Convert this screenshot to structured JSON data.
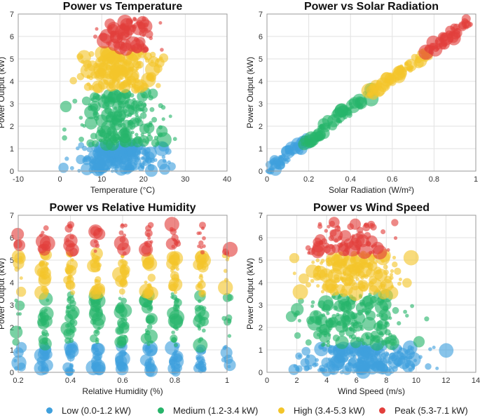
{
  "colors": {
    "low": "#3fa0dd",
    "medium": "#27b46a",
    "high": "#f3c52a",
    "peak": "#e23f3c"
  },
  "legend": [
    {
      "key": "low",
      "label": "Low (0.0-1.2 kW)"
    },
    {
      "key": "medium",
      "label": "Medium (1.2-3.4 kW)"
    },
    {
      "key": "high",
      "label": "High (3.4-5.3 kW)"
    },
    {
      "key": "peak",
      "label": "Peak (5.3-7.1 kW)"
    }
  ],
  "chart_data": [
    {
      "type": "scatter",
      "id": "temperature",
      "title": "Power vs Temperature",
      "xlabel": "Temperature (°C)",
      "ylabel": "Power Output (kW)",
      "xlim": [
        -10,
        40
      ],
      "ylim": [
        0,
        7
      ],
      "xticks": [
        -10,
        0,
        10,
        20,
        30,
        40
      ],
      "yticks": [
        0,
        1,
        2,
        3,
        4,
        5,
        6,
        7
      ],
      "grid": true,
      "clusters": [
        {
          "category": "low",
          "x_range": [
            -3,
            30
          ],
          "y_range": [
            0,
            1.2
          ],
          "n": 200
        },
        {
          "category": "medium",
          "x_range": [
            -1,
            30
          ],
          "y_range": [
            1.2,
            3.5
          ],
          "n": 180
        },
        {
          "category": "high",
          "x_range": [
            -1,
            29
          ],
          "y_range": [
            3.6,
            5.3
          ],
          "n": 160
        },
        {
          "category": "peak",
          "x_range": [
            6,
            26
          ],
          "y_range": [
            5.4,
            6.8
          ],
          "n": 80
        }
      ]
    },
    {
      "type": "scatter",
      "id": "solar",
      "title": "Power vs Solar Radiation",
      "xlabel": "Solar Radiation (W/m²)",
      "ylabel": "Power Output (kW)",
      "xlim": [
        0,
        1
      ],
      "ylim": [
        0,
        7
      ],
      "xticks": [
        0,
        0.2,
        0.4,
        0.6,
        0.8,
        1
      ],
      "yticks": [
        0,
        1,
        2,
        3,
        4,
        5,
        6,
        7
      ],
      "grid": true,
      "trend": {
        "slope": 6.9,
        "intercept": 0.0
      },
      "clusters": [
        {
          "category": "low",
          "x_range": [
            0.0,
            0.2
          ],
          "y_range": [
            0,
            1.2
          ],
          "n": 70
        },
        {
          "category": "medium",
          "x_range": [
            0.17,
            0.5
          ],
          "y_range": [
            1.2,
            3.4
          ],
          "n": 70
        },
        {
          "category": "high",
          "x_range": [
            0.48,
            0.78
          ],
          "y_range": [
            3.4,
            5.3
          ],
          "n": 70
        },
        {
          "category": "peak",
          "x_range": [
            0.76,
            0.98
          ],
          "y_range": [
            5.3,
            6.7
          ],
          "n": 55
        }
      ]
    },
    {
      "type": "scatter",
      "id": "humidity",
      "title": "Power vs Relative Humidity",
      "xlabel": "Relative Humidity (%)",
      "ylabel": "Power Output (kW)",
      "xlim": [
        0.2,
        1.0
      ],
      "ylim": [
        0,
        7
      ],
      "xticks": [
        0.2,
        0.4,
        0.6,
        0.8,
        1
      ],
      "yticks": [
        0,
        1,
        2,
        3,
        4,
        5,
        6,
        7
      ],
      "grid": true,
      "x_levels": [
        0.2,
        0.3,
        0.4,
        0.5,
        0.6,
        0.7,
        0.8,
        0.9,
        1.0
      ],
      "clusters": [
        {
          "category": "low",
          "y_range": [
            0,
            1.2
          ],
          "n": 20
        },
        {
          "category": "medium",
          "y_range": [
            1.2,
            3.5
          ],
          "n": 22
        },
        {
          "category": "high",
          "y_range": [
            3.5,
            5.3
          ],
          "n": 20
        },
        {
          "category": "peak",
          "y_range": [
            5.3,
            6.6
          ],
          "n": 10
        }
      ]
    },
    {
      "type": "scatter",
      "id": "wind",
      "title": "Power vs Wind Speed",
      "xlabel": "Wind Speed (m/s)",
      "ylabel": "Power Output (kW)",
      "xlim": [
        0,
        14
      ],
      "ylim": [
        0,
        7
      ],
      "xticks": [
        0,
        2,
        4,
        6,
        8,
        10,
        12,
        14
      ],
      "yticks": [
        0,
        1,
        2,
        3,
        4,
        5,
        6,
        7
      ],
      "grid": true,
      "clusters": [
        {
          "category": "low",
          "x_range": [
            0.3,
            12.5
          ],
          "y_range": [
            0,
            1.2
          ],
          "n": 210
        },
        {
          "category": "medium",
          "x_range": [
            0.5,
            11
          ],
          "y_range": [
            1.2,
            3.5
          ],
          "n": 170
        },
        {
          "category": "high",
          "x_range": [
            0.8,
            10.5
          ],
          "y_range": [
            3.5,
            5.3
          ],
          "n": 150
        },
        {
          "category": "peak",
          "x_range": [
            1.3,
            9.5
          ],
          "y_range": [
            5.3,
            6.7
          ],
          "n": 75
        }
      ]
    }
  ]
}
